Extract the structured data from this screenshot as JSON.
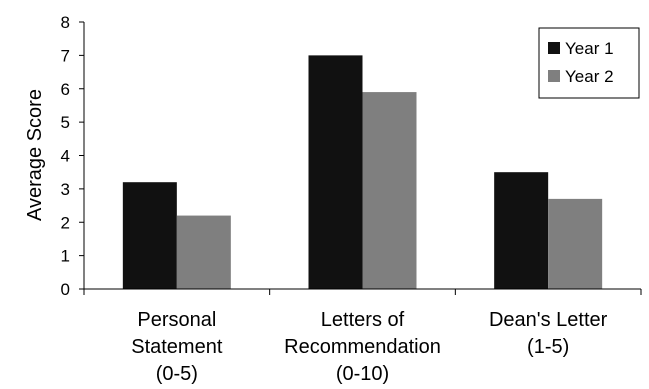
{
  "chart_data": {
    "type": "bar",
    "title": "",
    "xlabel": "",
    "ylabel": "Average Score",
    "ylim": [
      0,
      8
    ],
    "yticks": [
      "0",
      "1",
      "2",
      "3",
      "4",
      "5",
      "6",
      "7",
      "8"
    ],
    "categories": [
      [
        "Personal",
        "Statement",
        "(0-5)"
      ],
      [
        "Letters of",
        "Recommendation",
        "(0-10)"
      ],
      [
        "Dean's Letter",
        "(1-5)"
      ]
    ],
    "series": [
      {
        "name": "Year 1",
        "values": [
          3.2,
          7.0,
          3.5
        ],
        "color": "#111111"
      },
      {
        "name": "Year 2",
        "values": [
          2.2,
          5.9,
          2.7
        ],
        "color": "#7f7f7f"
      }
    ],
    "grid": false,
    "legend": "top-right"
  }
}
